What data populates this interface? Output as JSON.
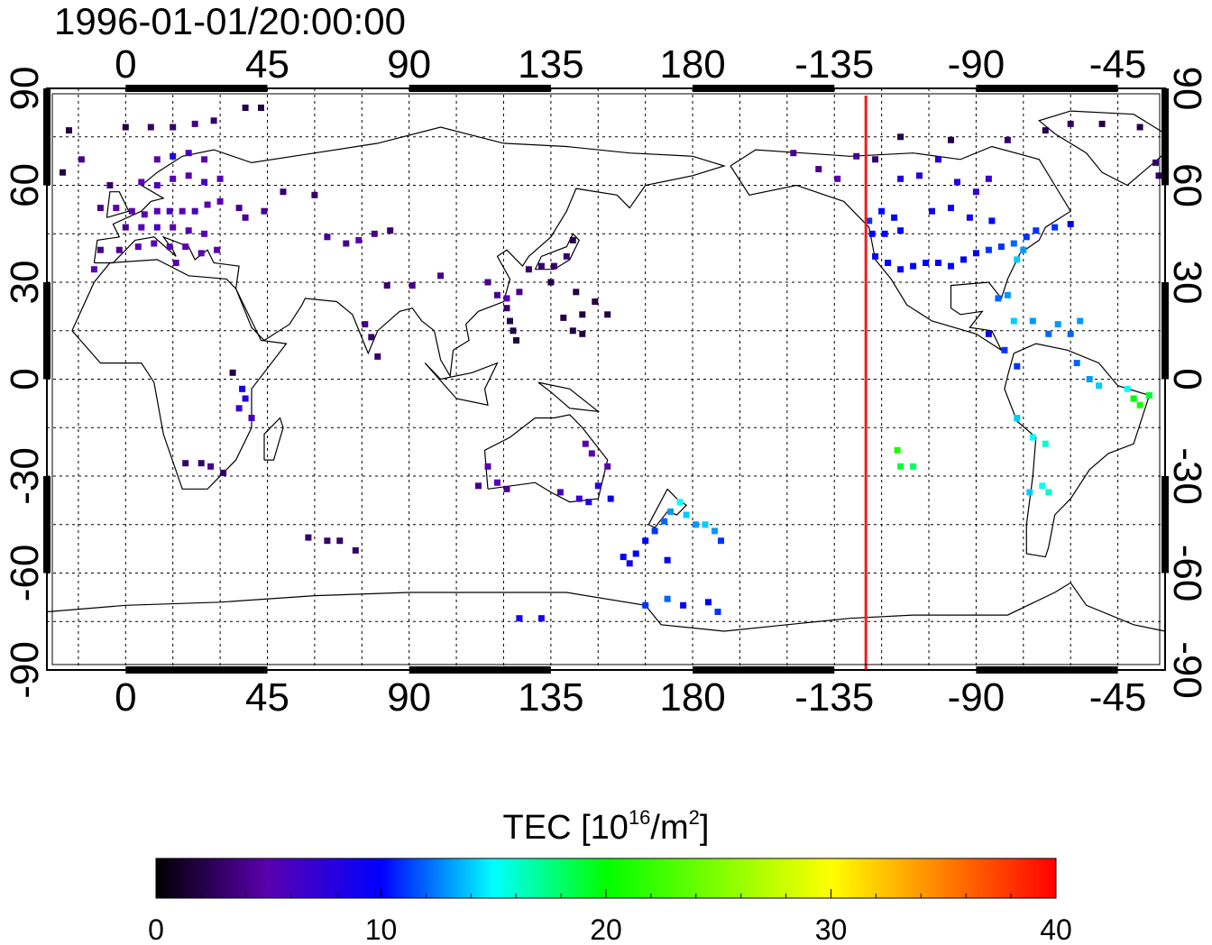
{
  "timestamp": "1996-01-01/20:00:00",
  "colorbar": {
    "label_prefix": "TEC  [10",
    "label_sup": "16",
    "label_mid": "/m",
    "label_sup2": "2",
    "label_suffix": "]",
    "range": [
      0,
      40
    ],
    "tick_labels": [
      "0",
      "10",
      "20",
      "30",
      "40"
    ],
    "stops": [
      {
        "v": 0,
        "color": "#000000"
      },
      {
        "v": 5,
        "color": "#5a00b0"
      },
      {
        "v": 10,
        "color": "#0000ff"
      },
      {
        "v": 15,
        "color": "#00ffff"
      },
      {
        "v": 20,
        "color": "#00ff00"
      },
      {
        "v": 30,
        "color": "#ffff00"
      },
      {
        "v": 35,
        "color": "#ff8000"
      },
      {
        "v": 40,
        "color": "#ff0000"
      }
    ]
  },
  "chart_data": {
    "type": "heatmap",
    "title": "1996-01-01/20:00:00",
    "x_tick_labels": [
      "0",
      "45",
      "90",
      "135",
      "180",
      "-135",
      "-90",
      "-45"
    ],
    "y_tick_labels_left": [
      "90",
      "60",
      "30",
      "0",
      "-30",
      "-60",
      "-90"
    ],
    "y_tick_labels_right": [
      "90",
      "60",
      "30",
      "0",
      "-30",
      "-60",
      "-90"
    ],
    "xlim": [
      -25,
      330
    ],
    "ylim": [
      -90,
      90
    ],
    "grid": true,
    "grid_step_deg": 15,
    "marker_longitude": 235,
    "marker_color": "#ee1c1c",
    "colorbar_label": "TEC [10^16/m^2]",
    "value_range": [
      0,
      40
    ],
    "points": [
      {
        "lon": -18,
        "lat": 77,
        "tec": 2
      },
      {
        "lon": 0,
        "lat": 78,
        "tec": 2
      },
      {
        "lon": 8,
        "lat": 78,
        "tec": 3
      },
      {
        "lon": 15,
        "lat": 78,
        "tec": 3
      },
      {
        "lon": 22,
        "lat": 79,
        "tec": 4
      },
      {
        "lon": 28,
        "lat": 80,
        "tec": 3
      },
      {
        "lon": 38,
        "lat": 84,
        "tec": 2
      },
      {
        "lon": 43,
        "lat": 84,
        "tec": 2
      },
      {
        "lon": -14,
        "lat": 68,
        "tec": 4
      },
      {
        "lon": -20,
        "lat": 64,
        "tec": 2
      },
      {
        "lon": -5,
        "lat": 60,
        "tec": 3
      },
      {
        "lon": 10,
        "lat": 68,
        "tec": 5
      },
      {
        "lon": 15,
        "lat": 69,
        "tec": 8
      },
      {
        "lon": 20,
        "lat": 70,
        "tec": 6
      },
      {
        "lon": 25,
        "lat": 68,
        "tec": 5
      },
      {
        "lon": 5,
        "lat": 61,
        "tec": 5
      },
      {
        "lon": 10,
        "lat": 60,
        "tec": 6
      },
      {
        "lon": 15,
        "lat": 62,
        "tec": 5
      },
      {
        "lon": 20,
        "lat": 63,
        "tec": 5
      },
      {
        "lon": 25,
        "lat": 61,
        "tec": 6
      },
      {
        "lon": 30,
        "lat": 62,
        "tec": 5
      },
      {
        "lon": -8,
        "lat": 53,
        "tec": 4
      },
      {
        "lon": -3,
        "lat": 53,
        "tec": 5
      },
      {
        "lon": 2,
        "lat": 52,
        "tec": 5
      },
      {
        "lon": 6,
        "lat": 51,
        "tec": 5
      },
      {
        "lon": 10,
        "lat": 52,
        "tec": 5
      },
      {
        "lon": 14,
        "lat": 52,
        "tec": 6
      },
      {
        "lon": 18,
        "lat": 52,
        "tec": 5
      },
      {
        "lon": 22,
        "lat": 52,
        "tec": 6
      },
      {
        "lon": 26,
        "lat": 54,
        "tec": 5
      },
      {
        "lon": 30,
        "lat": 55,
        "tec": 5
      },
      {
        "lon": 0,
        "lat": 47,
        "tec": 4
      },
      {
        "lon": 5,
        "lat": 47,
        "tec": 5
      },
      {
        "lon": 10,
        "lat": 47,
        "tec": 6
      },
      {
        "lon": 15,
        "lat": 47,
        "tec": 5
      },
      {
        "lon": 20,
        "lat": 46,
        "tec": 5
      },
      {
        "lon": 25,
        "lat": 45,
        "tec": 5
      },
      {
        "lon": -8,
        "lat": 40,
        "tec": 4
      },
      {
        "lon": -2,
        "lat": 40,
        "tec": 4
      },
      {
        "lon": 4,
        "lat": 41,
        "tec": 5
      },
      {
        "lon": 9,
        "lat": 42,
        "tec": 5
      },
      {
        "lon": 14,
        "lat": 41,
        "tec": 5
      },
      {
        "lon": 19,
        "lat": 41,
        "tec": 5
      },
      {
        "lon": 24,
        "lat": 39,
        "tec": 5
      },
      {
        "lon": 29,
        "lat": 40,
        "tec": 5
      },
      {
        "lon": -10,
        "lat": 34,
        "tec": 5
      },
      {
        "lon": 16,
        "lat": 36,
        "tec": 5
      },
      {
        "lon": 36,
        "lat": 53,
        "tec": 4
      },
      {
        "lon": 38,
        "lat": 50,
        "tec": 4
      },
      {
        "lon": 44,
        "lat": 52,
        "tec": 4
      },
      {
        "lon": 50,
        "lat": 58,
        "tec": 3
      },
      {
        "lon": 60,
        "lat": 57,
        "tec": 3
      },
      {
        "lon": 64,
        "lat": 44,
        "tec": 4
      },
      {
        "lon": 70,
        "lat": 42,
        "tec": 4
      },
      {
        "lon": 74,
        "lat": 43,
        "tec": 5
      },
      {
        "lon": 79,
        "lat": 45,
        "tec": 4
      },
      {
        "lon": 84,
        "lat": 46,
        "tec": 3
      },
      {
        "lon": 76,
        "lat": 17,
        "tec": 4
      },
      {
        "lon": 78,
        "lat": 13,
        "tec": 3
      },
      {
        "lon": 80,
        "lat": 7,
        "tec": 3
      },
      {
        "lon": 83,
        "lat": 29,
        "tec": 3
      },
      {
        "lon": 91,
        "lat": 29,
        "tec": 4
      },
      {
        "lon": 100,
        "lat": 32,
        "tec": 4
      },
      {
        "lon": 115,
        "lat": 30,
        "tec": 4
      },
      {
        "lon": 118,
        "lat": 26,
        "tec": 4
      },
      {
        "lon": 121,
        "lat": 25,
        "tec": 5
      },
      {
        "lon": 125,
        "lat": 27,
        "tec": 4
      },
      {
        "lon": 128,
        "lat": 34,
        "tec": 3
      },
      {
        "lon": 132,
        "lat": 35,
        "tec": 3
      },
      {
        "lon": 136,
        "lat": 35,
        "tec": 3
      },
      {
        "lon": 140,
        "lat": 38,
        "tec": 3
      },
      {
        "lon": 142,
        "lat": 43,
        "tec": 2
      },
      {
        "lon": 121,
        "lat": 22,
        "tec": 3
      },
      {
        "lon": 122,
        "lat": 18,
        "tec": 2
      },
      {
        "lon": 123,
        "lat": 15,
        "tec": 2
      },
      {
        "lon": 124,
        "lat": 12,
        "tec": 2
      },
      {
        "lon": 135,
        "lat": 30,
        "tec": 2
      },
      {
        "lon": 143,
        "lat": 27,
        "tec": 2
      },
      {
        "lon": 145,
        "lat": 20,
        "tec": 2
      },
      {
        "lon": 149,
        "lat": 24,
        "tec": 2
      },
      {
        "lon": 153,
        "lat": 20,
        "tec": 2
      },
      {
        "lon": 139,
        "lat": 19,
        "tec": 2
      },
      {
        "lon": 142,
        "lat": 15,
        "tec": 2
      },
      {
        "lon": 145,
        "lat": 14,
        "tec": 2
      },
      {
        "lon": 37,
        "lat": -3,
        "tec": 9
      },
      {
        "lon": 38,
        "lat": -6,
        "tec": 8
      },
      {
        "lon": 36,
        "lat": -9,
        "tec": 7
      },
      {
        "lon": 40,
        "lat": -12,
        "tec": 6
      },
      {
        "lon": 34,
        "lat": 2,
        "tec": 2
      },
      {
        "lon": 19,
        "lat": -26,
        "tec": 3
      },
      {
        "lon": 24,
        "lat": -26,
        "tec": 3
      },
      {
        "lon": 27,
        "lat": -27,
        "tec": 4
      },
      {
        "lon": 31,
        "lat": -29,
        "tec": 3
      },
      {
        "lon": 58,
        "lat": -49,
        "tec": 3
      },
      {
        "lon": 64,
        "lat": -50,
        "tec": 3
      },
      {
        "lon": 68,
        "lat": -50,
        "tec": 3
      },
      {
        "lon": 73,
        "lat": -53,
        "tec": 3
      },
      {
        "lon": 112,
        "lat": -33,
        "tec": 4
      },
      {
        "lon": 115,
        "lat": -27,
        "tec": 5
      },
      {
        "lon": 118,
        "lat": -32,
        "tec": 5
      },
      {
        "lon": 121,
        "lat": -34,
        "tec": 4
      },
      {
        "lon": 138,
        "lat": -35,
        "tec": 6
      },
      {
        "lon": 144,
        "lat": -37,
        "tec": 7
      },
      {
        "lon": 147,
        "lat": -38,
        "tec": 8
      },
      {
        "lon": 150,
        "lat": -33,
        "tec": 8
      },
      {
        "lon": 146,
        "lat": -20,
        "tec": 5
      },
      {
        "lon": 148,
        "lat": -23,
        "tec": 5
      },
      {
        "lon": 153,
        "lat": -27,
        "tec": 5
      },
      {
        "lon": 154,
        "lat": -37,
        "tec": 10
      },
      {
        "lon": 158,
        "lat": -55,
        "tec": 10
      },
      {
        "lon": 162,
        "lat": -54,
        "tec": 10
      },
      {
        "lon": 165,
        "lat": -50,
        "tec": 10
      },
      {
        "lon": 168,
        "lat": -47,
        "tec": 11
      },
      {
        "lon": 171,
        "lat": -44,
        "tec": 12
      },
      {
        "lon": 173,
        "lat": -41,
        "tec": 13
      },
      {
        "lon": 176,
        "lat": -38,
        "tec": 15
      },
      {
        "lon": 178,
        "lat": -42,
        "tec": 14
      },
      {
        "lon": 181,
        "lat": -45,
        "tec": 13
      },
      {
        "lon": 184,
        "lat": -45,
        "tec": 14
      },
      {
        "lon": 187,
        "lat": -47,
        "tec": 13
      },
      {
        "lon": 189,
        "lat": -50,
        "tec": 11
      },
      {
        "lon": 160,
        "lat": -57,
        "tec": 9
      },
      {
        "lon": 172,
        "lat": -56,
        "tec": 10
      },
      {
        "lon": 240,
        "lat": 52,
        "tec": 10
      },
      {
        "lon": 244,
        "lat": 50,
        "tec": 10
      },
      {
        "lon": 236,
        "lat": 49,
        "tec": 11
      },
      {
        "lon": 237,
        "lat": 45,
        "tec": 10
      },
      {
        "lon": 241,
        "lat": 45,
        "tec": 10
      },
      {
        "lon": 246,
        "lat": 46,
        "tec": 10
      },
      {
        "lon": 238,
        "lat": 38,
        "tec": 10
      },
      {
        "lon": 242,
        "lat": 36,
        "tec": 10
      },
      {
        "lon": 246,
        "lat": 34,
        "tec": 10
      },
      {
        "lon": 250,
        "lat": 35,
        "tec": 10
      },
      {
        "lon": 254,
        "lat": 36,
        "tec": 10
      },
      {
        "lon": 258,
        "lat": 36,
        "tec": 10
      },
      {
        "lon": 262,
        "lat": 35,
        "tec": 10
      },
      {
        "lon": 266,
        "lat": 37,
        "tec": 10
      },
      {
        "lon": 270,
        "lat": 39,
        "tec": 10
      },
      {
        "lon": 274,
        "lat": 40,
        "tec": 11
      },
      {
        "lon": 278,
        "lat": 41,
        "tec": 11
      },
      {
        "lon": 282,
        "lat": 42,
        "tec": 12
      },
      {
        "lon": 285,
        "lat": 40,
        "tec": 13
      },
      {
        "lon": 283,
        "lat": 37,
        "tec": 14
      },
      {
        "lon": 286,
        "lat": 44,
        "tec": 11
      },
      {
        "lon": 289,
        "lat": 46,
        "tec": 11
      },
      {
        "lon": 295,
        "lat": 47,
        "tec": 11
      },
      {
        "lon": 300,
        "lat": 48,
        "tec": 10
      },
      {
        "lon": 256,
        "lat": 52,
        "tec": 9
      },
      {
        "lon": 262,
        "lat": 53,
        "tec": 9
      },
      {
        "lon": 268,
        "lat": 50,
        "tec": 9
      },
      {
        "lon": 275,
        "lat": 49,
        "tec": 10
      },
      {
        "lon": 246,
        "lat": 62,
        "tec": 8
      },
      {
        "lon": 252,
        "lat": 63,
        "tec": 8
      },
      {
        "lon": 258,
        "lat": 68,
        "tec": 8
      },
      {
        "lon": 264,
        "lat": 61,
        "tec": 8
      },
      {
        "lon": 270,
        "lat": 58,
        "tec": 7
      },
      {
        "lon": 274,
        "lat": 62,
        "tec": 7
      },
      {
        "lon": 212,
        "lat": 70,
        "tec": 4
      },
      {
        "lon": 220,
        "lat": 65,
        "tec": 4
      },
      {
        "lon": 226,
        "lat": 62,
        "tec": 5
      },
      {
        "lon": 232,
        "lat": 69,
        "tec": 4
      },
      {
        "lon": 238,
        "lat": 68,
        "tec": 3
      },
      {
        "lon": 246,
        "lat": 75,
        "tec": 2
      },
      {
        "lon": 262,
        "lat": 74,
        "tec": 2
      },
      {
        "lon": 280,
        "lat": 74,
        "tec": 3
      },
      {
        "lon": 292,
        "lat": 77,
        "tec": 2
      },
      {
        "lon": 300,
        "lat": 79,
        "tec": 3
      },
      {
        "lon": 310,
        "lat": 79,
        "tec": 2
      },
      {
        "lon": 322,
        "lat": 78,
        "tec": 2
      },
      {
        "lon": 327,
        "lat": 67,
        "tec": 3
      },
      {
        "lon": 328,
        "lat": 63,
        "tec": 3
      },
      {
        "lon": 277,
        "lat": 25,
        "tec": 12
      },
      {
        "lon": 280,
        "lat": 26,
        "tec": 13
      },
      {
        "lon": 282,
        "lat": 18,
        "tec": 14
      },
      {
        "lon": 288,
        "lat": 18,
        "tec": 13
      },
      {
        "lon": 293,
        "lat": 14,
        "tec": 12
      },
      {
        "lon": 296,
        "lat": 17,
        "tec": 13
      },
      {
        "lon": 300,
        "lat": 14,
        "tec": 12
      },
      {
        "lon": 303,
        "lat": 18,
        "tec": 13
      },
      {
        "lon": 274,
        "lat": 14,
        "tec": 9
      },
      {
        "lon": 279,
        "lat": 9,
        "tec": 11
      },
      {
        "lon": 283,
        "lat": 4,
        "tec": 11
      },
      {
        "lon": 302,
        "lat": 5,
        "tec": 12
      },
      {
        "lon": 306,
        "lat": 0,
        "tec": 13
      },
      {
        "lon": 309,
        "lat": -2,
        "tec": 14
      },
      {
        "lon": 318,
        "lat": -3,
        "tec": 15
      },
      {
        "lon": 320,
        "lat": -6,
        "tec": 20
      },
      {
        "lon": 322,
        "lat": -8,
        "tec": 21
      },
      {
        "lon": 325,
        "lat": -5,
        "tec": 19
      },
      {
        "lon": 283,
        "lat": -12,
        "tec": 14
      },
      {
        "lon": 288,
        "lat": -18,
        "tec": 15
      },
      {
        "lon": 292,
        "lat": -20,
        "tec": 16
      },
      {
        "lon": 291,
        "lat": -33,
        "tec": 15
      },
      {
        "lon": 293,
        "lat": -35,
        "tec": 16
      },
      {
        "lon": 287,
        "lat": -35,
        "tec": 14
      },
      {
        "lon": 245,
        "lat": -22,
        "tec": 21
      },
      {
        "lon": 246,
        "lat": -27,
        "tec": 19
      },
      {
        "lon": 250,
        "lat": -27,
        "tec": 18
      },
      {
        "lon": 125,
        "lat": -74,
        "tec": 9
      },
      {
        "lon": 132,
        "lat": -74,
        "tec": 9
      },
      {
        "lon": 165,
        "lat": -70,
        "tec": 11
      },
      {
        "lon": 172,
        "lat": -68,
        "tec": 12
      },
      {
        "lon": 177,
        "lat": -70,
        "tec": 10
      },
      {
        "lon": 185,
        "lat": -69,
        "tec": 10
      },
      {
        "lon": 188,
        "lat": -72,
        "tec": 11
      }
    ]
  }
}
